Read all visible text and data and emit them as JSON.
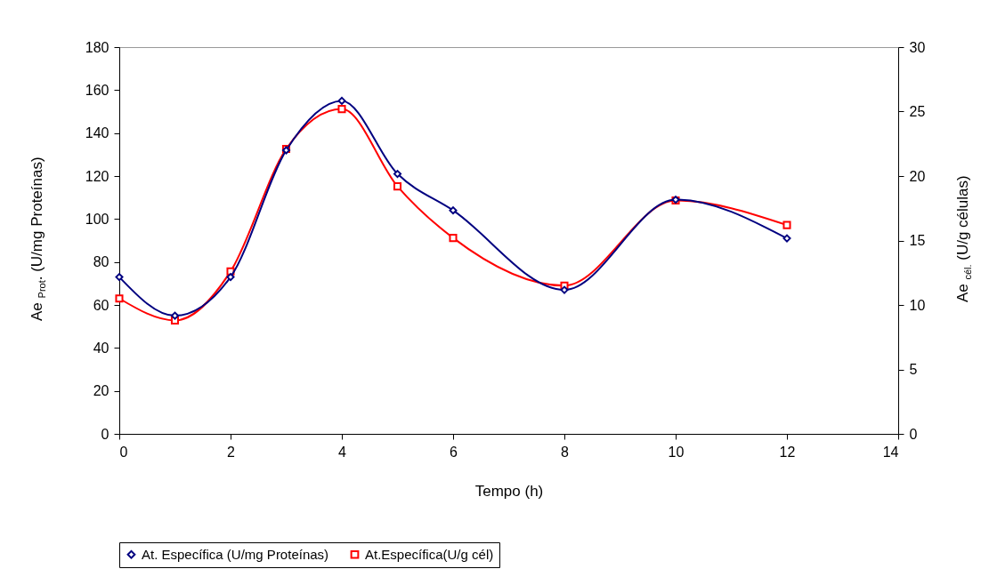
{
  "chart_data": {
    "type": "line",
    "xlabel": "Tempo (h)",
    "ylabel": "Ae $_{Prot}$. (U/mg Proteínas)",
    "y2label": "Ae $_{cél.}$ (U/g células)",
    "x": [
      0,
      1,
      2,
      3,
      4,
      5,
      6,
      8,
      10,
      12
    ],
    "xlim": [
      0,
      14
    ],
    "xticks": [
      0,
      2,
      4,
      6,
      8,
      10,
      12,
      14
    ],
    "ylim": [
      0,
      180
    ],
    "yticks": [
      0,
      20,
      40,
      60,
      80,
      100,
      120,
      140,
      160,
      180
    ],
    "y2lim": [
      0,
      30
    ],
    "y2ticks": [
      0,
      5,
      10,
      15,
      20,
      25,
      30
    ],
    "grid": false,
    "legend": "bottom",
    "series": [
      {
        "name": "At. Específica (U/mg Proteínas)",
        "color": "#000080",
        "marker": "diamond",
        "values": [
          73,
          55,
          73,
          132,
          155,
          121,
          104,
          67,
          109,
          91
        ]
      },
      {
        "name": "At.Específica(U/g cél)",
        "color": "#ff0000",
        "marker": "square",
        "axis": "y2",
        "values": [
          10.5,
          8.8,
          12.6,
          22.1,
          25.2,
          19.2,
          15.2,
          11.5,
          18.1,
          16.2
        ]
      }
    ]
  }
}
